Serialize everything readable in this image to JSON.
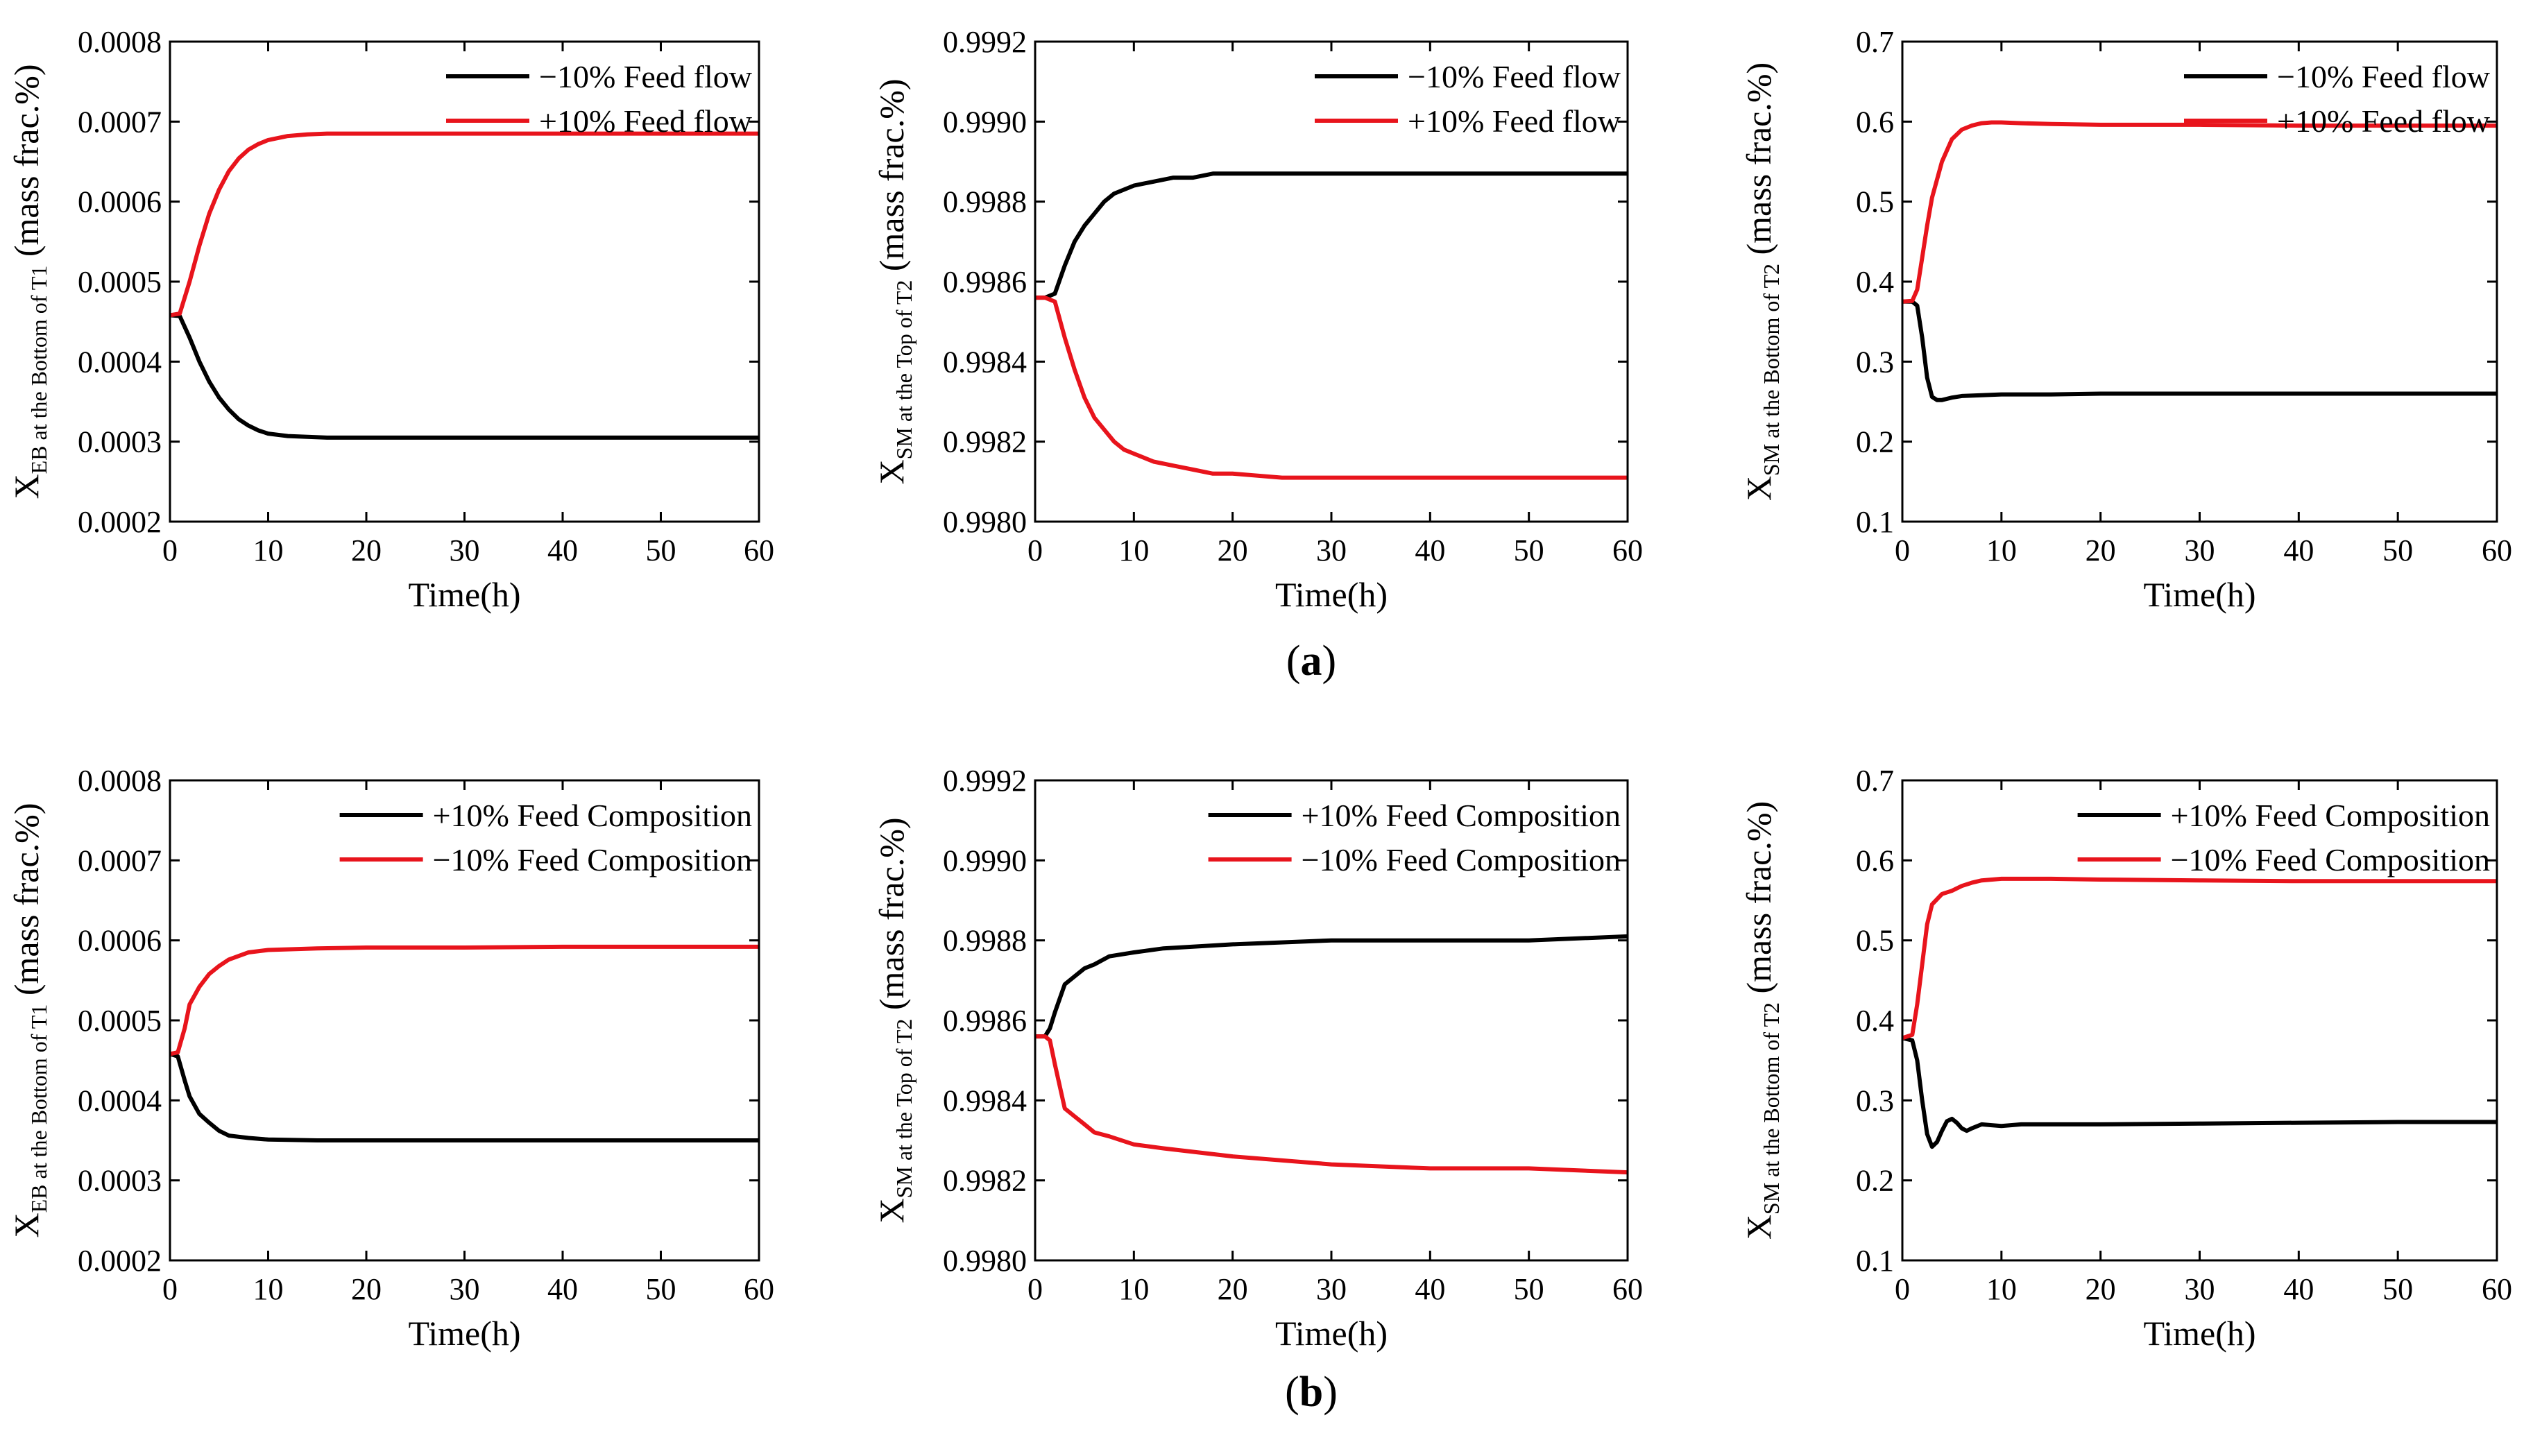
{
  "colors": {
    "black_series": "#000000",
    "red_series": "#e8141c",
    "axis": "#000000"
  },
  "panel_labels": {
    "a": "a",
    "b": "b"
  },
  "chart_data": [
    {
      "type": "line",
      "id": "a1",
      "xlabel": "Time(h)",
      "ylabel": {
        "main": "X",
        "sub": "EB at the Bottom of T1",
        "suffix": " (mass frac.%)"
      },
      "xlim": [
        0,
        60
      ],
      "ylim": [
        0.0002,
        0.0008
      ],
      "xticks": [
        0,
        10,
        20,
        30,
        40,
        50,
        60
      ],
      "xtick_labels": [
        "0",
        "10",
        "20",
        "30",
        "40",
        "50",
        "60"
      ],
      "yticks": [
        0.0002,
        0.0003,
        0.0004,
        0.0005,
        0.0006,
        0.0007,
        0.0008
      ],
      "ytick_labels": [
        "0.0002",
        "0.0003",
        "0.0004",
        "0.0005",
        "0.0006",
        "0.0007",
        "0.0008"
      ],
      "legend_position": "top-right",
      "series": [
        {
          "name": "−10% Feed flow",
          "color": "#000000",
          "x": [
            0,
            1,
            2,
            3,
            4,
            5,
            6,
            7,
            8,
            9,
            10,
            12,
            14,
            16,
            20,
            25,
            30,
            40,
            50,
            60
          ],
          "y": [
            0.000458,
            0.000457,
            0.00043,
            0.0004,
            0.000375,
            0.000355,
            0.00034,
            0.000328,
            0.00032,
            0.000314,
            0.00031,
            0.000307,
            0.000306,
            0.000305,
            0.000305,
            0.000305,
            0.000305,
            0.000305,
            0.000305,
            0.000305
          ]
        },
        {
          "name": "+10% Feed flow",
          "color": "#e8141c",
          "x": [
            0,
            1,
            2,
            3,
            4,
            5,
            6,
            7,
            8,
            9,
            10,
            12,
            14,
            16,
            20,
            25,
            30,
            40,
            50,
            60
          ],
          "y": [
            0.000458,
            0.00046,
            0.0005,
            0.000545,
            0.000585,
            0.000615,
            0.000638,
            0.000654,
            0.000665,
            0.000672,
            0.000677,
            0.000682,
            0.000684,
            0.000685,
            0.000685,
            0.000685,
            0.000685,
            0.000685,
            0.000685,
            0.000685
          ]
        }
      ]
    },
    {
      "type": "line",
      "id": "a2",
      "xlabel": "Time(h)",
      "ylabel": {
        "main": "X",
        "sub": "SM at the Top of T2",
        "suffix": " (mass frac.%)"
      },
      "xlim": [
        0,
        60
      ],
      "ylim": [
        0.998,
        0.9992
      ],
      "xticks": [
        0,
        10,
        20,
        30,
        40,
        50,
        60
      ],
      "xtick_labels": [
        "0",
        "10",
        "20",
        "30",
        "40",
        "50",
        "60"
      ],
      "yticks": [
        0.998,
        0.9982,
        0.9984,
        0.9986,
        0.9988,
        0.999,
        0.9992
      ],
      "ytick_labels": [
        "0.9980",
        "0.9982",
        "0.9984",
        "0.9986",
        "0.9988",
        "0.9990",
        "0.9992"
      ],
      "legend_position": "top-right",
      "series": [
        {
          "name": "−10% Feed flow",
          "color": "#000000",
          "x": [
            0,
            1,
            2,
            3,
            4,
            5,
            6,
            7,
            8,
            9,
            10,
            12,
            14,
            16,
            18,
            20,
            25,
            30,
            40,
            50,
            60
          ],
          "y": [
            0.99856,
            0.99856,
            0.99857,
            0.99864,
            0.9987,
            0.99874,
            0.99877,
            0.9988,
            0.99882,
            0.99883,
            0.99884,
            0.99885,
            0.99886,
            0.99886,
            0.99887,
            0.99887,
            0.99887,
            0.99887,
            0.99887,
            0.99887,
            0.99887
          ]
        },
        {
          "name": "+10% Feed flow",
          "color": "#e8141c",
          "x": [
            0,
            1,
            2,
            3,
            4,
            5,
            6,
            7,
            8,
            9,
            10,
            12,
            14,
            16,
            18,
            20,
            25,
            30,
            40,
            50,
            60
          ],
          "y": [
            0.99856,
            0.99856,
            0.99855,
            0.99846,
            0.99838,
            0.99831,
            0.99826,
            0.99823,
            0.9982,
            0.99818,
            0.99817,
            0.99815,
            0.99814,
            0.99813,
            0.99812,
            0.99812,
            0.99811,
            0.99811,
            0.99811,
            0.99811,
            0.99811
          ]
        }
      ]
    },
    {
      "type": "line",
      "id": "a3",
      "xlabel": "Time(h)",
      "ylabel": {
        "main": "X",
        "sub": "SM at the Bottom of T2",
        "suffix": " (mass frac.%)"
      },
      "xlim": [
        0,
        60
      ],
      "ylim": [
        0.1,
        0.7
      ],
      "xticks": [
        0,
        10,
        20,
        30,
        40,
        50,
        60
      ],
      "xtick_labels": [
        "0",
        "10",
        "20",
        "30",
        "40",
        "50",
        "60"
      ],
      "yticks": [
        0.1,
        0.2,
        0.3,
        0.4,
        0.5,
        0.6,
        0.7
      ],
      "ytick_labels": [
        "0.1",
        "0.2",
        "0.3",
        "0.4",
        "0.5",
        "0.6",
        "0.7"
      ],
      "legend_position": "top-right",
      "series": [
        {
          "name": "−10% Feed flow",
          "color": "#000000",
          "x": [
            0,
            1,
            1.5,
            2,
            2.5,
            3,
            3.5,
            4,
            5,
            6,
            8,
            10,
            15,
            20,
            30,
            40,
            50,
            60
          ],
          "y": [
            0.375,
            0.375,
            0.37,
            0.33,
            0.28,
            0.256,
            0.252,
            0.252,
            0.255,
            0.257,
            0.258,
            0.259,
            0.259,
            0.26,
            0.26,
            0.26,
            0.26,
            0.26
          ]
        },
        {
          "name": "+10% Feed flow",
          "color": "#e8141c",
          "x": [
            0,
            1,
            1.5,
            2,
            2.5,
            3,
            4,
            5,
            6,
            7,
            8,
            9,
            10,
            12,
            15,
            20,
            30,
            40,
            50,
            60
          ],
          "y": [
            0.375,
            0.376,
            0.39,
            0.43,
            0.47,
            0.505,
            0.55,
            0.578,
            0.59,
            0.595,
            0.598,
            0.599,
            0.599,
            0.598,
            0.597,
            0.596,
            0.596,
            0.595,
            0.595,
            0.595
          ]
        }
      ]
    },
    {
      "type": "line",
      "id": "b1",
      "xlabel": "Time(h)",
      "ylabel": {
        "main": "X",
        "sub": "EB at the Bottom of T1",
        "suffix": " (mass frac.%)"
      },
      "xlim": [
        0,
        60
      ],
      "ylim": [
        0.0002,
        0.0008
      ],
      "xticks": [
        0,
        10,
        20,
        30,
        40,
        50,
        60
      ],
      "xtick_labels": [
        "0",
        "10",
        "20",
        "30",
        "40",
        "50",
        "60"
      ],
      "yticks": [
        0.0002,
        0.0003,
        0.0004,
        0.0005,
        0.0006,
        0.0007,
        0.0008
      ],
      "ytick_labels": [
        "0.0002",
        "0.0003",
        "0.0004",
        "0.0005",
        "0.0006",
        "0.0007",
        "0.0008"
      ],
      "legend_position": "top-right",
      "series": [
        {
          "name": "+10% Feed Composition",
          "color": "#000000",
          "x": [
            0,
            0.8,
            1.5,
            2,
            3,
            4,
            5,
            6,
            8,
            10,
            15,
            20,
            30,
            40,
            50,
            60
          ],
          "y": [
            0.000458,
            0.000455,
            0.000425,
            0.000405,
            0.000383,
            0.000372,
            0.000362,
            0.000356,
            0.000353,
            0.000351,
            0.00035,
            0.00035,
            0.00035,
            0.00035,
            0.00035,
            0.00035
          ]
        },
        {
          "name": "−10% Feed Composition",
          "color": "#e8141c",
          "x": [
            0,
            0.8,
            1.5,
            2,
            3,
            4,
            5,
            6,
            8,
            10,
            15,
            20,
            30,
            40,
            50,
            60
          ],
          "y": [
            0.000458,
            0.00046,
            0.00049,
            0.00052,
            0.000542,
            0.000558,
            0.000568,
            0.000576,
            0.000585,
            0.000588,
            0.00059,
            0.000591,
            0.000591,
            0.000592,
            0.000592,
            0.000592
          ]
        }
      ]
    },
    {
      "type": "line",
      "id": "b2",
      "xlabel": "Time(h)",
      "ylabel": {
        "main": "X",
        "sub": "SM at the Top of T2",
        "suffix": " (mass frac.%)"
      },
      "xlim": [
        0,
        60
      ],
      "ylim": [
        0.998,
        0.9992
      ],
      "xticks": [
        0,
        10,
        20,
        30,
        40,
        50,
        60
      ],
      "xtick_labels": [
        "0",
        "10",
        "20",
        "30",
        "40",
        "50",
        "60"
      ],
      "yticks": [
        0.998,
        0.9982,
        0.9984,
        0.9986,
        0.9988,
        0.999,
        0.9992
      ],
      "ytick_labels": [
        "0.9980",
        "0.9982",
        "0.9984",
        "0.9986",
        "0.9988",
        "0.9990",
        "0.9992"
      ],
      "legend_position": "top-right",
      "series": [
        {
          "name": "+10% Feed Composition",
          "color": "#000000",
          "x": [
            0,
            1,
            1.5,
            2,
            3,
            4,
            5,
            6,
            7.5,
            10,
            13,
            20,
            30,
            40,
            50,
            60
          ],
          "y": [
            0.99856,
            0.99856,
            0.99858,
            0.99862,
            0.99869,
            0.99871,
            0.99873,
            0.99874,
            0.99876,
            0.99877,
            0.99878,
            0.99879,
            0.9988,
            0.9988,
            0.9988,
            0.99881
          ]
        },
        {
          "name": "−10% Feed Composition",
          "color": "#e8141c",
          "x": [
            0,
            1,
            1.5,
            2,
            3,
            4,
            5,
            6,
            7.5,
            10,
            13,
            20,
            30,
            40,
            50,
            60
          ],
          "y": [
            0.99856,
            0.99856,
            0.99855,
            0.99849,
            0.99838,
            0.99836,
            0.99834,
            0.99832,
            0.99831,
            0.99829,
            0.99828,
            0.99826,
            0.99824,
            0.99823,
            0.99823,
            0.99822
          ]
        }
      ]
    },
    {
      "type": "line",
      "id": "b3",
      "xlabel": "Time(h)",
      "ylabel": {
        "main": "X",
        "sub": "SM at the Bottom of T2",
        "suffix": " (mass frac.%)"
      },
      "xlim": [
        0,
        60
      ],
      "ylim": [
        0.1,
        0.7
      ],
      "xticks": [
        0,
        10,
        20,
        30,
        40,
        50,
        60
      ],
      "xtick_labels": [
        "0",
        "10",
        "20",
        "30",
        "40",
        "50",
        "60"
      ],
      "yticks": [
        0.1,
        0.2,
        0.3,
        0.4,
        0.5,
        0.6,
        0.7
      ],
      "ytick_labels": [
        "0.1",
        "0.2",
        "0.3",
        "0.4",
        "0.5",
        "0.6",
        "0.7"
      ],
      "legend_position": "top-right",
      "series": [
        {
          "name": "+10% Feed Composition",
          "color": "#000000",
          "x": [
            0,
            1,
            1.5,
            2,
            2.5,
            3,
            3.5,
            4,
            4.5,
            5,
            5.5,
            6,
            6.5,
            7,
            8,
            9,
            10,
            12,
            15,
            20,
            30,
            40,
            50,
            60
          ],
          "y": [
            0.378,
            0.375,
            0.35,
            0.3,
            0.258,
            0.242,
            0.248,
            0.262,
            0.274,
            0.277,
            0.272,
            0.265,
            0.262,
            0.265,
            0.27,
            0.269,
            0.268,
            0.27,
            0.27,
            0.27,
            0.271,
            0.272,
            0.273,
            0.273
          ]
        },
        {
          "name": "−10% Feed Composition",
          "color": "#e8141c",
          "x": [
            0,
            1,
            1.5,
            2,
            2.5,
            3,
            4,
            5,
            6,
            7,
            8,
            10,
            12,
            15,
            20,
            30,
            40,
            50,
            60
          ],
          "y": [
            0.378,
            0.382,
            0.42,
            0.47,
            0.52,
            0.545,
            0.558,
            0.562,
            0.568,
            0.572,
            0.575,
            0.577,
            0.577,
            0.577,
            0.576,
            0.575,
            0.574,
            0.574,
            0.574
          ]
        }
      ]
    }
  ]
}
